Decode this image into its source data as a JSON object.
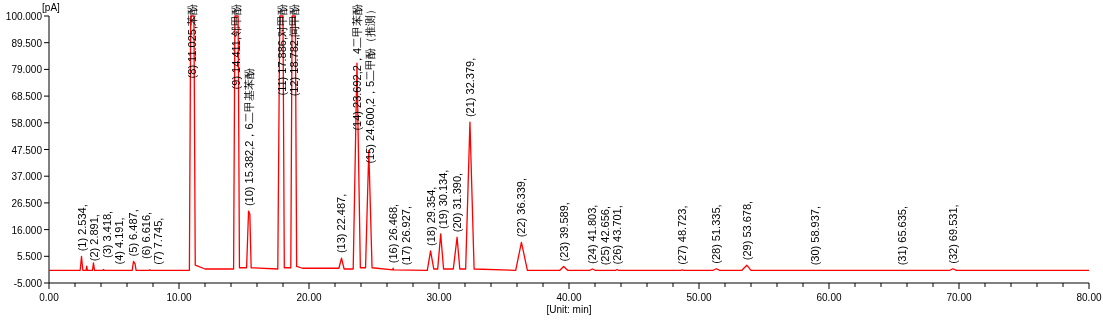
{
  "chart_data": {
    "type": "line",
    "xlabel": "[Unit: min]",
    "ylabel": "[pA]",
    "xlim": [
      0,
      80
    ],
    "ylim": [
      -5,
      100
    ],
    "xticks": [
      {
        "value": 0,
        "label": "0.00"
      },
      {
        "value": 2,
        "label": null
      },
      {
        "value": 4,
        "label": null
      },
      {
        "value": 6,
        "label": null
      },
      {
        "value": 8,
        "label": null
      },
      {
        "value": 10,
        "label": "10.00"
      },
      {
        "value": 12,
        "label": null
      },
      {
        "value": 14,
        "label": null
      },
      {
        "value": 16,
        "label": null
      },
      {
        "value": 18,
        "label": null
      },
      {
        "value": 20,
        "label": "20.00"
      },
      {
        "value": 22,
        "label": null
      },
      {
        "value": 24,
        "label": null
      },
      {
        "value": 26,
        "label": null
      },
      {
        "value": 28,
        "label": null
      },
      {
        "value": 30,
        "label": "30.00"
      },
      {
        "value": 32,
        "label": null
      },
      {
        "value": 34,
        "label": null
      },
      {
        "value": 36,
        "label": null
      },
      {
        "value": 38,
        "label": null
      },
      {
        "value": 40,
        "label": "40.00"
      },
      {
        "value": 42,
        "label": null
      },
      {
        "value": 44,
        "label": null
      },
      {
        "value": 46,
        "label": null
      },
      {
        "value": 48,
        "label": null
      },
      {
        "value": 50,
        "label": "50.00"
      },
      {
        "value": 52,
        "label": null
      },
      {
        "value": 54,
        "label": null
      },
      {
        "value": 56,
        "label": null
      },
      {
        "value": 58,
        "label": null
      },
      {
        "value": 60,
        "label": "60.00"
      },
      {
        "value": 62,
        "label": null
      },
      {
        "value": 64,
        "label": null
      },
      {
        "value": 66,
        "label": null
      },
      {
        "value": 68,
        "label": null
      },
      {
        "value": 70,
        "label": "70.00"
      },
      {
        "value": 72,
        "label": null
      },
      {
        "value": 74,
        "label": null
      },
      {
        "value": 76,
        "label": null
      },
      {
        "value": 78,
        "label": null
      },
      {
        "value": 80,
        "label": "80.00"
      }
    ],
    "yticks": [
      {
        "value": -5,
        "label": "-5.000"
      },
      {
        "value": 5.5,
        "label": "5.500"
      },
      {
        "value": 16,
        "label": "16.000"
      },
      {
        "value": 26.5,
        "label": "26.500"
      },
      {
        "value": 37,
        "label": "37.000"
      },
      {
        "value": 47.5,
        "label": "47.500"
      },
      {
        "value": 58,
        "label": "58.000"
      },
      {
        "value": 68.5,
        "label": "68.500"
      },
      {
        "value": 79,
        "label": "79.000"
      },
      {
        "value": 89.5,
        "label": "89.500"
      },
      {
        "value": 100,
        "label": "100.000"
      }
    ],
    "series": [
      {
        "color": "#ff0000",
        "x": [
          0,
          2.4,
          2.5,
          2.6,
          2.85,
          2.9,
          2.95,
          3.35,
          3.42,
          3.5,
          4.15,
          4.19,
          4.25,
          6.4,
          6.5,
          6.62,
          6.7,
          7.7,
          7.75,
          7.8,
          10.8,
          10.9,
          11.15,
          11.25,
          12,
          14.2,
          14.3,
          14.55,
          14.65,
          15.2,
          15.35,
          15.45,
          15.55,
          17.6,
          17.75,
          18.0,
          18.1,
          18.6,
          18.7,
          18.95,
          19.05,
          19.5,
          22.3,
          22.5,
          22.7,
          23.4,
          23.69,
          23.95,
          24.35,
          24.6,
          24.85,
          26.45,
          26.47,
          26.5,
          29.1,
          29.35,
          29.6,
          29.9,
          30.13,
          30.35,
          31.1,
          31.39,
          31.6,
          32.05,
          32.38,
          32.7,
          35.9,
          36.34,
          36.8,
          39.3,
          39.59,
          39.9,
          41.6,
          41.8,
          42.0,
          43.6,
          43.7,
          43.8,
          48.6,
          48.72,
          48.8,
          51.1,
          51.33,
          51.6,
          53.3,
          53.68,
          54.0,
          69.3,
          69.53,
          69.8,
          80
        ],
        "values": [
          0,
          0,
          5.5,
          0,
          0,
          1.6,
          0,
          0,
          2.9,
          0,
          0,
          0.3,
          0,
          0,
          3.5,
          2.5,
          0,
          0,
          0.2,
          0,
          0,
          100,
          100,
          2,
          0.5,
          0.5,
          100,
          100,
          1,
          1,
          23.3,
          22,
          1,
          0.5,
          100,
          100,
          1,
          1,
          100,
          100,
          1.5,
          0.8,
          0.8,
          4.8,
          0.5,
          0.5,
          81.5,
          1,
          1,
          47.1,
          1,
          0.2,
          0.8,
          0.2,
          0,
          7.6,
          0.5,
          0.5,
          14.3,
          0.5,
          0.5,
          13,
          0.5,
          0.5,
          58.3,
          0.5,
          0,
          11,
          0,
          0,
          1.5,
          0,
          0,
          0.5,
          0,
          0,
          0.3,
          0,
          0,
          0.2,
          0,
          0,
          0.6,
          0,
          0,
          2,
          0,
          0,
          0.6,
          0,
          0
        ]
      }
    ],
    "annotations": [
      {
        "text": "(1) 2.534,",
        "x": 2.534,
        "y": 5.5
      },
      {
        "text": "(2) 2.891,",
        "x": 2.891,
        "y": 1.6
      },
      {
        "text": "(3) 3.418,",
        "x": 3.418,
        "y": 2.9
      },
      {
        "text": "(4) 4.191,",
        "x": 4.191,
        "y": 0.3
      },
      {
        "text": "(5) 6.487,",
        "x": 6.487,
        "y": 3.5
      },
      {
        "text": "(6) 6.616,",
        "x": 6.616,
        "y": 2.5
      },
      {
        "text": "(7) 7.745,",
        "x": 7.745,
        "y": 0.2
      },
      {
        "text": "(8) 11.025,苯酚",
        "x": 11.025,
        "y": 100
      },
      {
        "text": "(9) 14.411,邻甲酚",
        "x": 14.411,
        "y": 100
      },
      {
        "text": "(10) 15.382,2，6二甲基苯酚",
        "x": 15.382,
        "y": 23.3
      },
      {
        "text": "(11) 17.886,对甲酚",
        "x": 17.886,
        "y": 100
      },
      {
        "text": "(12) 18.782,间甲酚",
        "x": 18.782,
        "y": 100
      },
      {
        "text": "(13) 22.487,",
        "x": 22.487,
        "y": 4.8
      },
      {
        "text": "(14) 23.692,2，4二甲苯酚",
        "x": 23.692,
        "y": 81.5
      },
      {
        "text": "(15) 24.600,2，5二甲酚（推测）",
        "x": 24.6,
        "y": 47.1
      },
      {
        "text": "(16) 26.468,",
        "x": 26.468,
        "y": 0.8
      },
      {
        "text": "(17) 26.927,",
        "x": 26.927,
        "y": 0
      },
      {
        "text": "(18) 29.354,",
        "x": 29.354,
        "y": 7.6
      },
      {
        "text": "(19) 30.134,",
        "x": 30.134,
        "y": 14.3
      },
      {
        "text": "(20) 31.390,",
        "x": 31.39,
        "y": 13
      },
      {
        "text": "(21) 32.379,",
        "x": 32.379,
        "y": 58.3
      },
      {
        "text": "(22) 36.339,",
        "x": 36.339,
        "y": 11
      },
      {
        "text": "(23) 39.589,",
        "x": 39.589,
        "y": 1.5
      },
      {
        "text": "(24) 41.803,",
        "x": 41.803,
        "y": 0.5
      },
      {
        "text": "(25) 42.656,",
        "x": 42.656,
        "y": 0
      },
      {
        "text": "(26) 43.701,",
        "x": 43.701,
        "y": 0.3
      },
      {
        "text": "(27) 48.723,",
        "x": 48.723,
        "y": 0.2
      },
      {
        "text": "(28) 51.335,",
        "x": 51.335,
        "y": 0.6
      },
      {
        "text": "(29) 53.678,",
        "x": 53.678,
        "y": 2
      },
      {
        "text": "(30) 58.937,",
        "x": 58.937,
        "y": 0
      },
      {
        "text": "(31) 65.635,",
        "x": 65.635,
        "y": 0
      },
      {
        "text": "(32) 69.531,",
        "x": 69.531,
        "y": 0.6
      }
    ]
  }
}
